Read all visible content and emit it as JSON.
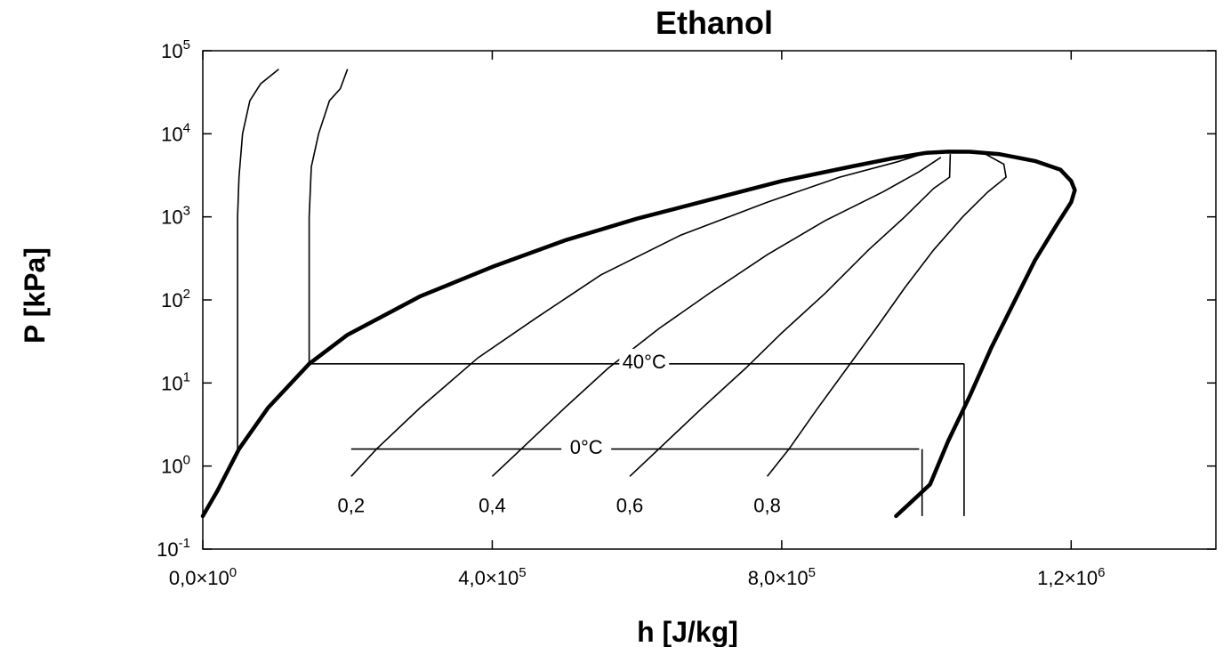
{
  "chart_data": {
    "type": "line",
    "title": "Ethanol",
    "xlabel": "h [J/kg]",
    "ylabel": "P [kPa]",
    "x_scale": "linear",
    "y_scale": "log",
    "xlim": [
      0,
      1400000
    ],
    "ylim": [
      0.1,
      100000
    ],
    "grid": false,
    "x_ticks": [
      {
        "value": 0,
        "mantissa": "0,0×10",
        "exp": "0"
      },
      {
        "value": 400000,
        "mantissa": "4,0×10",
        "exp": "5"
      },
      {
        "value": 800000,
        "mantissa": "8,0×10",
        "exp": "5"
      },
      {
        "value": 1200000,
        "mantissa": "1,2×10",
        "exp": "6"
      }
    ],
    "y_ticks": [
      {
        "value": 0.1,
        "base": "10",
        "exp": "-1"
      },
      {
        "value": 1,
        "base": "10",
        "exp": "0"
      },
      {
        "value": 10,
        "base": "10",
        "exp": "1"
      },
      {
        "value": 100,
        "base": "10",
        "exp": "2"
      },
      {
        "value": 1000,
        "base": "10",
        "exp": "3"
      },
      {
        "value": 10000,
        "base": "10",
        "exp": "4"
      },
      {
        "value": 100000,
        "base": "10",
        "exp": "5"
      }
    ],
    "series": [
      {
        "style": "thick",
        "points": [
          [
            0,
            0.25
          ],
          [
            20000,
            0.5
          ],
          [
            50000,
            1.6
          ],
          [
            90000,
            5
          ],
          [
            147000,
            17
          ],
          [
            200000,
            38
          ],
          [
            300000,
            110
          ],
          [
            400000,
            250
          ],
          [
            500000,
            520
          ],
          [
            600000,
            950
          ],
          [
            700000,
            1600
          ],
          [
            800000,
            2700
          ],
          [
            900000,
            4100
          ],
          [
            950000,
            5000
          ],
          [
            1000000,
            5900
          ],
          [
            1030000,
            6100
          ],
          [
            1060000,
            6080
          ],
          [
            1100000,
            5700
          ],
          [
            1150000,
            4700
          ],
          [
            1185000,
            3700
          ],
          [
            1200000,
            2700
          ],
          [
            1205000,
            2100
          ],
          [
            1200000,
            1500
          ],
          [
            1180000,
            800
          ],
          [
            1150000,
            300
          ],
          [
            1120000,
            90
          ],
          [
            1090000,
            27
          ],
          [
            1060000,
            7
          ],
          [
            1030000,
            2
          ],
          [
            1005000,
            0.6
          ],
          [
            958000,
            0.25
          ]
        ]
      },
      {
        "style": "thin",
        "points": [
          [
            48000,
            1.6
          ],
          [
            48000,
            1000
          ],
          [
            50000,
            3000
          ],
          [
            55000,
            10000
          ],
          [
            65000,
            25000
          ],
          [
            80000,
            40000
          ],
          [
            105000,
            60000
          ]
        ]
      },
      {
        "style": "thin",
        "points": [
          [
            147000,
            17
          ],
          [
            147000,
            1000
          ],
          [
            150000,
            4000
          ],
          [
            160000,
            10000
          ],
          [
            175000,
            25000
          ],
          [
            190000,
            35000
          ],
          [
            200000,
            60000
          ]
        ]
      },
      {
        "style": "thin",
        "points": [
          [
            205000,
            1.6
          ],
          [
            990000,
            1.6
          ]
        ]
      },
      {
        "style": "thin",
        "points": [
          [
            147000,
            17
          ],
          [
            1052000,
            17
          ]
        ]
      },
      {
        "style": "thin",
        "points": [
          [
            994000,
            0.25
          ],
          [
            994000,
            1.6
          ]
        ]
      },
      {
        "style": "thin",
        "points": [
          [
            1052000,
            0.25
          ],
          [
            1052000,
            17
          ]
        ]
      },
      {
        "style": "thin",
        "points": [
          [
            205000,
            0.75
          ],
          [
            240000,
            1.6
          ],
          [
            300000,
            5
          ],
          [
            380000,
            20
          ],
          [
            460000,
            60
          ],
          [
            550000,
            200
          ],
          [
            660000,
            600
          ],
          [
            780000,
            1500
          ],
          [
            880000,
            3000
          ],
          [
            960000,
            4600
          ],
          [
            1000000,
            5900
          ]
        ]
      },
      {
        "style": "thin",
        "points": [
          [
            400000,
            0.75
          ],
          [
            440000,
            1.6
          ],
          [
            500000,
            5
          ],
          [
            560000,
            15
          ],
          [
            630000,
            45
          ],
          [
            700000,
            120
          ],
          [
            780000,
            350
          ],
          [
            860000,
            900
          ],
          [
            940000,
            2000
          ],
          [
            990000,
            3500
          ],
          [
            1020000,
            5200
          ]
        ]
      },
      {
        "style": "thin",
        "points": [
          [
            590000,
            0.75
          ],
          [
            630000,
            1.6
          ],
          [
            690000,
            5
          ],
          [
            750000,
            15
          ],
          [
            800000,
            40
          ],
          [
            860000,
            120
          ],
          [
            920000,
            400
          ],
          [
            970000,
            1000
          ],
          [
            1010000,
            2200
          ],
          [
            1032000,
            3000
          ],
          [
            1033000,
            5700
          ]
        ]
      },
      {
        "style": "thin",
        "points": [
          [
            780000,
            0.75
          ],
          [
            810000,
            1.6
          ],
          [
            850000,
            5
          ],
          [
            890000,
            15
          ],
          [
            930000,
            45
          ],
          [
            970000,
            140
          ],
          [
            1010000,
            400
          ],
          [
            1050000,
            1000
          ],
          [
            1085000,
            2000
          ],
          [
            1110000,
            3000
          ],
          [
            1107000,
            4300
          ],
          [
            1080000,
            5800
          ]
        ]
      }
    ],
    "annotations": [
      {
        "text": "40°C",
        "x": 610000,
        "y": 15
      },
      {
        "text": "0°C",
        "x": 530000,
        "y": 1.4
      },
      {
        "text": "0,2",
        "x": 205000,
        "y": 0.28
      },
      {
        "text": "0,4",
        "x": 400000,
        "y": 0.28
      },
      {
        "text": "0,6",
        "x": 590000,
        "y": 0.28
      },
      {
        "text": "0,8",
        "x": 780000,
        "y": 0.28
      }
    ]
  }
}
